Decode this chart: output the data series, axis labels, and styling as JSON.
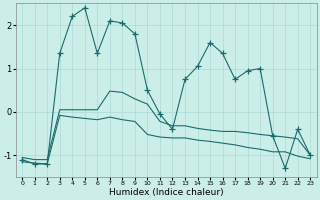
{
  "xlabel": "Humidex (Indice chaleur)",
  "background_color": "#cceee8",
  "line_color": "#1a6b6b",
  "grid_color": "#b0ddd8",
  "x": [
    0,
    1,
    2,
    3,
    4,
    5,
    6,
    7,
    8,
    9,
    10,
    11,
    12,
    13,
    14,
    15,
    16,
    17,
    18,
    19,
    20,
    21,
    22,
    23
  ],
  "y_main": [
    -1.1,
    -1.2,
    -1.2,
    1.35,
    2.2,
    2.4,
    1.35,
    2.1,
    2.05,
    1.8,
    0.5,
    -0.05,
    -0.4,
    0.75,
    1.05,
    1.6,
    1.35,
    0.75,
    0.95,
    1.0,
    -0.55,
    -1.3,
    -0.4,
    -1.0
  ],
  "y_upper": [
    -1.05,
    -1.1,
    -1.1,
    0.05,
    0.05,
    0.05,
    0.05,
    0.48,
    0.45,
    0.3,
    0.18,
    -0.22,
    -0.32,
    -0.32,
    -0.38,
    -0.42,
    -0.45,
    -0.45,
    -0.48,
    -0.52,
    -0.55,
    -0.58,
    -0.62,
    -1.0
  ],
  "y_lower": [
    -1.15,
    -1.18,
    -1.2,
    -0.08,
    -0.12,
    -0.15,
    -0.18,
    -0.12,
    -0.18,
    -0.22,
    -0.52,
    -0.58,
    -0.6,
    -0.6,
    -0.65,
    -0.68,
    -0.72,
    -0.76,
    -0.82,
    -0.86,
    -0.92,
    -0.92,
    -1.02,
    -1.08
  ],
  "ylim": [
    -1.5,
    2.5
  ],
  "yticks": [
    -1,
    0,
    1,
    2
  ],
  "xticks": [
    0,
    1,
    2,
    3,
    4,
    5,
    6,
    7,
    8,
    9,
    10,
    11,
    12,
    13,
    14,
    15,
    16,
    17,
    18,
    19,
    20,
    21,
    22,
    23
  ],
  "xlim": [
    -0.5,
    23.5
  ],
  "marker": "+",
  "markersize": 4,
  "linewidth": 0.8
}
